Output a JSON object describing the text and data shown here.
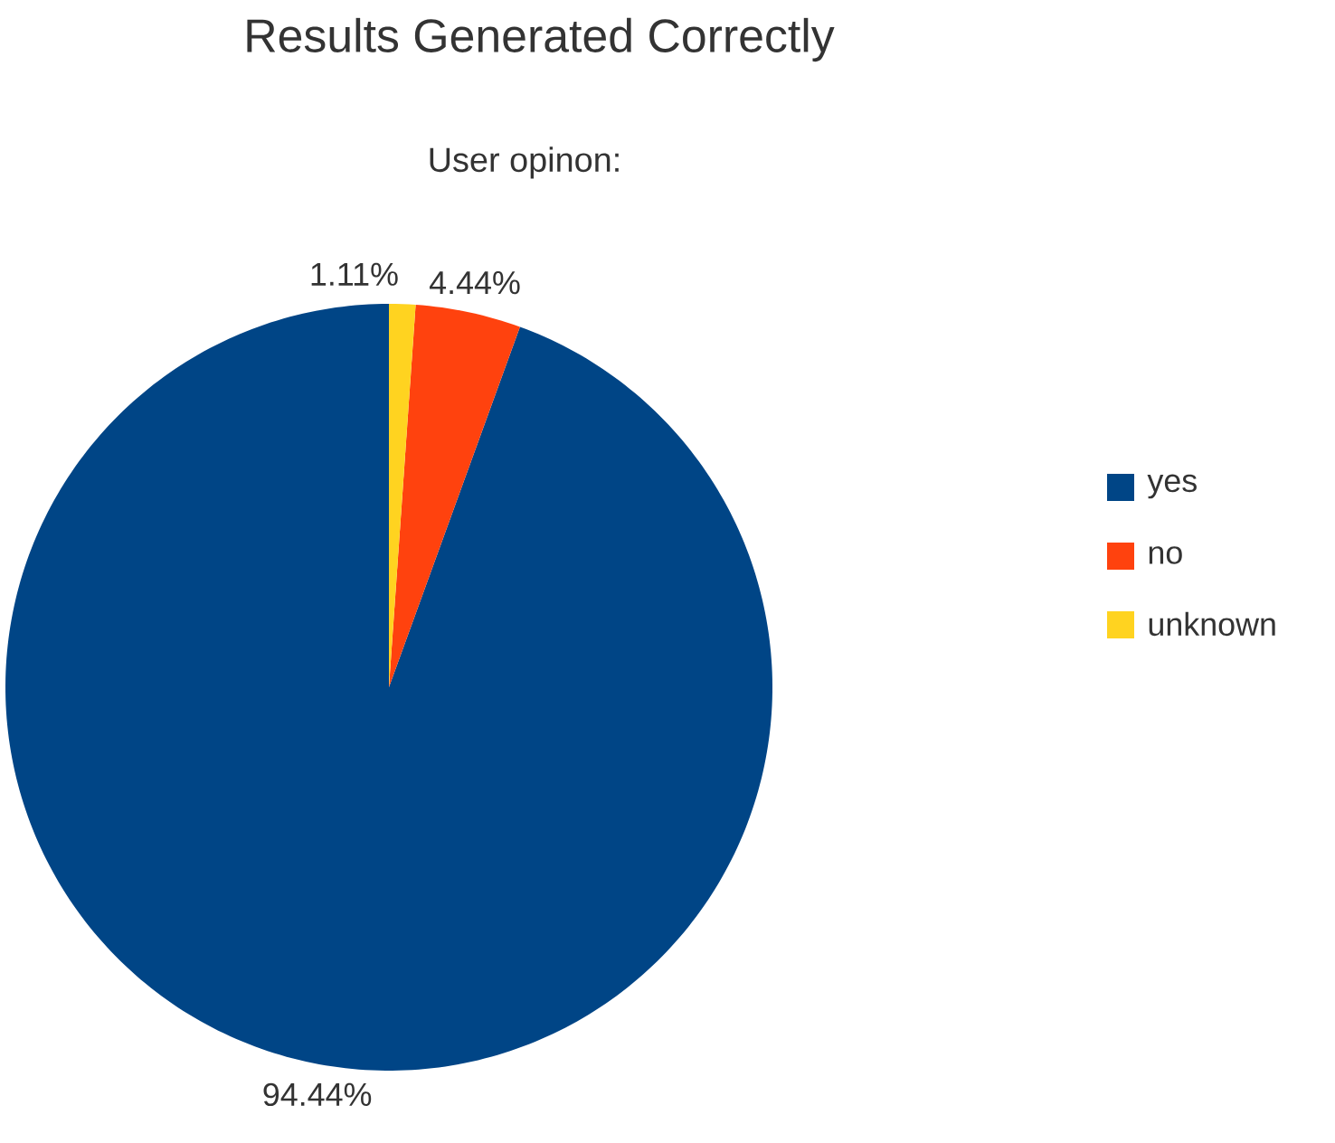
{
  "chart_data": {
    "type": "pie",
    "title": "Results Generated Correctly",
    "subtitle": "User opinon:",
    "categories": [
      "yes",
      "no",
      "unknown"
    ],
    "values": [
      94.44,
      4.44,
      1.11
    ],
    "value_labels": [
      "94.44%",
      "4.44%",
      "1.11%"
    ],
    "colors": [
      "#004586",
      "#ff420e",
      "#ffd320"
    ],
    "legend": "right"
  }
}
